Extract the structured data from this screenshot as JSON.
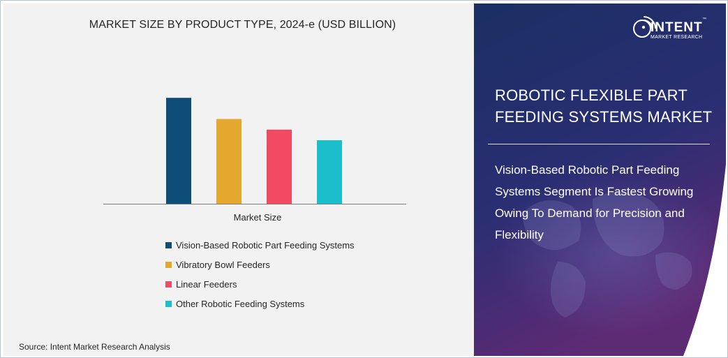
{
  "chart_data": {
    "type": "bar",
    "title": "MARKET SIZE BY PRODUCT TYPE, 2024-e (USD BILLION)",
    "categories": [
      "Market Size"
    ],
    "series": [
      {
        "name": "Vision-Based Robotic Part Feeding Systems",
        "values": [
          1.0
        ],
        "color": "#0e4d75"
      },
      {
        "name": "Vibratory Bowl Feeders",
        "values": [
          0.8
        ],
        "color": "#e5a82e"
      },
      {
        "name": "Linear Feeders",
        "values": [
          0.7
        ],
        "color": "#f24a63"
      },
      {
        "name": "Other Robotic Feeding Systems",
        "values": [
          0.6
        ],
        "color": "#1bbfcb"
      }
    ],
    "ylim": [
      0,
      1.1
    ],
    "grid": false,
    "legend_position": "bottom"
  },
  "source": "Source:  Intent Market Research Analysis",
  "side_panel": {
    "logo_name": "INTENT",
    "logo_tm": "™",
    "logo_sub": "MARKET RESEARCH",
    "report_title": "ROBOTIC FLEXIBLE PART FEEDING SYSTEMS MARKET",
    "insight": "Vision-Based Robotic Part Feeding Systems Segment Is Fastest Growing Owing To Demand for Precision and Flexibility",
    "accent_colors": [
      "#1b2f63",
      "#2a2e73",
      "#5d2a74"
    ],
    "icon": "wifi-signal-logo-icon"
  }
}
